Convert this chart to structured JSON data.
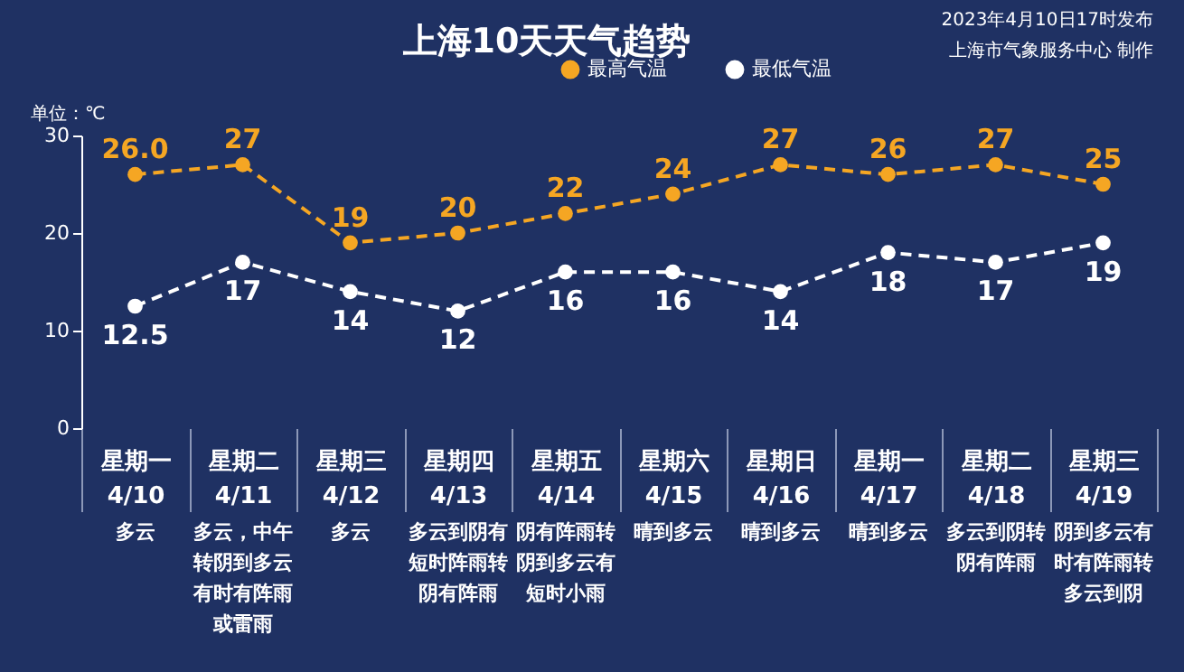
{
  "chart_data": {
    "type": "line",
    "title": "上海10天天气趋势",
    "categories": [
      "星期一\n4/10",
      "星期二\n4/11",
      "星期三\n4/12",
      "星期四\n4/13",
      "星期五\n4/14",
      "星期六\n4/15",
      "星期日\n4/16",
      "星期一\n4/17",
      "星期二\n4/18",
      "星期三\n4/19"
    ],
    "series": [
      {
        "name": "最高气温",
        "color": "#f5a623",
        "values": [
          26.0,
          27,
          19,
          20,
          22,
          24,
          27,
          26,
          27,
          25
        ],
        "value_labels": [
          "26.0",
          "27",
          "19",
          "20",
          "22",
          "24",
          "27",
          "26",
          "27",
          "25"
        ]
      },
      {
        "name": "最低气温",
        "color": "#ffffff",
        "values": [
          12.5,
          17,
          14,
          12,
          16,
          16,
          14,
          18,
          17,
          19
        ],
        "value_labels": [
          "12.5",
          "17",
          "14",
          "12",
          "16",
          "16",
          "14",
          "18",
          "17",
          "19"
        ]
      }
    ],
    "ylim": [
      0,
      30
    ],
    "yticks": [
      0,
      10,
      20,
      30
    ],
    "grid": false,
    "legend": "top right",
    "marker": "circle",
    "line_style": "dashed",
    "annotations": [
      "单位：℃",
      "2023年4月10日17时发布",
      "上海市气象服务中心 制作",
      "多云",
      "多云，中午转阴到多云有时有阵雨或雷雨",
      "多云",
      "多云到阴有短时阵雨转阴有阵雨",
      "阴有阵雨转阴到多云有短时小雨",
      "晴到多云",
      "晴到多云",
      "晴到多云",
      "多云到阴转阴有阵雨",
      "阴到多云有时有阵雨转多云到阴"
    ]
  }
}
